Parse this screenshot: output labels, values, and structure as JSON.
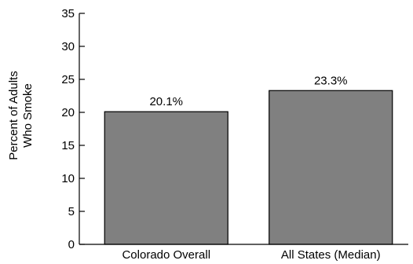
{
  "chart_data": {
    "type": "bar",
    "title": "",
    "xlabel": "",
    "ylabel_lines": [
      "Percent of Adults",
      "Who Smoke"
    ],
    "categories": [
      "Colorado Overall",
      "All States (Median)"
    ],
    "values": [
      20.1,
      23.3
    ],
    "data_labels": [
      "20.1%",
      "23.3%"
    ],
    "ylim": [
      0,
      35
    ],
    "yticks": [
      0,
      5,
      10,
      15,
      20,
      25,
      30,
      35
    ],
    "grid": false,
    "legend": "none",
    "bar_color": "#808080",
    "bar_edge_color": "#000000"
  }
}
